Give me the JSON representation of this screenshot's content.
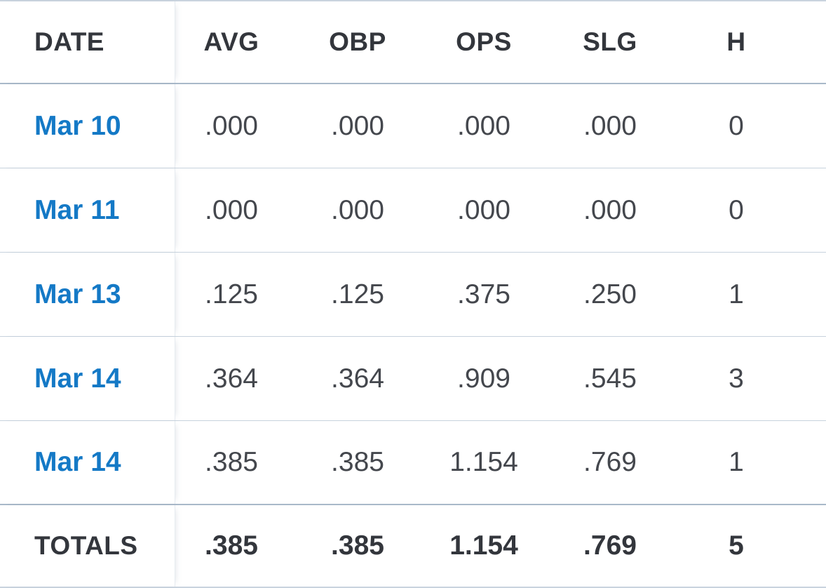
{
  "columns": {
    "date": "DATE",
    "avg": "AVG",
    "obp": "OBP",
    "ops": "OPS",
    "slg": "SLG",
    "h": "H"
  },
  "games": [
    {
      "date": "Mar 10",
      "avg": ".000",
      "obp": ".000",
      "ops": ".000",
      "slg": ".000",
      "h": "0"
    },
    {
      "date": "Mar 11",
      "avg": ".000",
      "obp": ".000",
      "ops": ".000",
      "slg": ".000",
      "h": "0"
    },
    {
      "date": "Mar 13",
      "avg": ".125",
      "obp": ".125",
      "ops": ".375",
      "slg": ".250",
      "h": "1"
    },
    {
      "date": "Mar 14",
      "avg": ".364",
      "obp": ".364",
      "ops": ".909",
      "slg": ".545",
      "h": "3"
    },
    {
      "date": "Mar 14",
      "avg": ".385",
      "obp": ".385",
      "ops": "1.154",
      "slg": ".769",
      "h": "1"
    }
  ],
  "totals": {
    "label": "TOTALS",
    "avg": ".385",
    "obp": ".385",
    "ops": "1.154",
    "slg": ".769",
    "h": "5"
  },
  "colors": {
    "link": "#1479c6",
    "text": "#3a3d44",
    "divider": "#c7d2dd"
  }
}
